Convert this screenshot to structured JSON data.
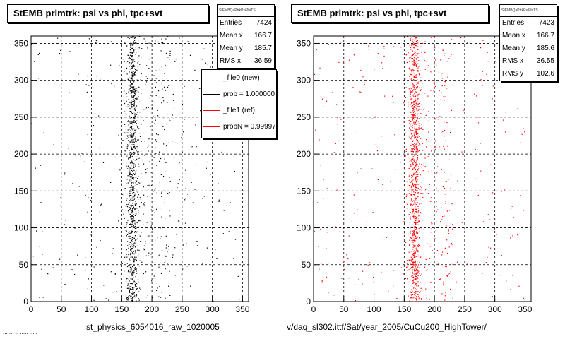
{
  "chart_data": [
    {
      "type": "scatter",
      "title": "StEMB primtrk: psi vs phi, tpc+svt",
      "xlabel": "",
      "ylabel": "",
      "caption": "st_physics_6054016_raw_1020005",
      "xlim": [
        0,
        360
      ],
      "ylim": [
        0,
        360
      ],
      "x_ticks": [
        0,
        50,
        100,
        150,
        200,
        250,
        300,
        350
      ],
      "y_ticks": [
        0,
        50,
        100,
        150,
        200,
        250,
        300,
        350
      ],
      "grid": true,
      "marker_color": "#000000",
      "stats": {
        "name": "StEMBQaPtrkPsiPhiTS",
        "rows": [
          {
            "label": "Entries",
            "value": "7424"
          },
          {
            "label": "Mean x",
            "value": "166.7"
          },
          {
            "label": "Mean y",
            "value": "185.7"
          },
          {
            "label": "RMS x",
            "value": "36.59"
          }
        ]
      },
      "legend": [
        {
          "label": "_file0 (new)",
          "color": "#000000"
        },
        {
          "label": "prob = 1.000000",
          "color": "#000000"
        },
        {
          "label": "_file1 (ref)",
          "color": "#ff0000"
        },
        {
          "label": "probN = 0.999970",
          "color": "#ff0000"
        }
      ],
      "distribution": {
        "band_center_x": 166.7,
        "band_width_x": 10,
        "y_range": [
          0,
          360
        ]
      }
    },
    {
      "type": "scatter",
      "title": "StEMB primtrk: psi vs phi, tpc+svt",
      "xlabel": "",
      "ylabel": "",
      "caption": "v/daq_sl302.ittf/Sat/year_2005/CuCu200_HighTower/",
      "xlim": [
        0,
        360
      ],
      "ylim": [
        0,
        360
      ],
      "x_ticks": [
        0,
        50,
        100,
        150,
        200,
        250,
        300,
        350
      ],
      "y_ticks": [
        0,
        50,
        100,
        150,
        200,
        250,
        300,
        350
      ],
      "grid": true,
      "marker_color": "#ff0000",
      "stats": {
        "name": "StEMBQaPtrkPsiPhiTS",
        "rows": [
          {
            "label": "Entries",
            "value": "7423"
          },
          {
            "label": "Mean x",
            "value": "166.7"
          },
          {
            "label": "Mean y",
            "value": "185.6"
          },
          {
            "label": "RMS x",
            "value": "36.55"
          },
          {
            "label": "RMS y",
            "value": "102.6"
          }
        ]
      },
      "distribution": {
        "band_center_x": 166.7,
        "band_width_x": 10,
        "y_range": [
          0,
          360
        ]
      }
    }
  ],
  "footer_text": "... ... .. ..... ....."
}
